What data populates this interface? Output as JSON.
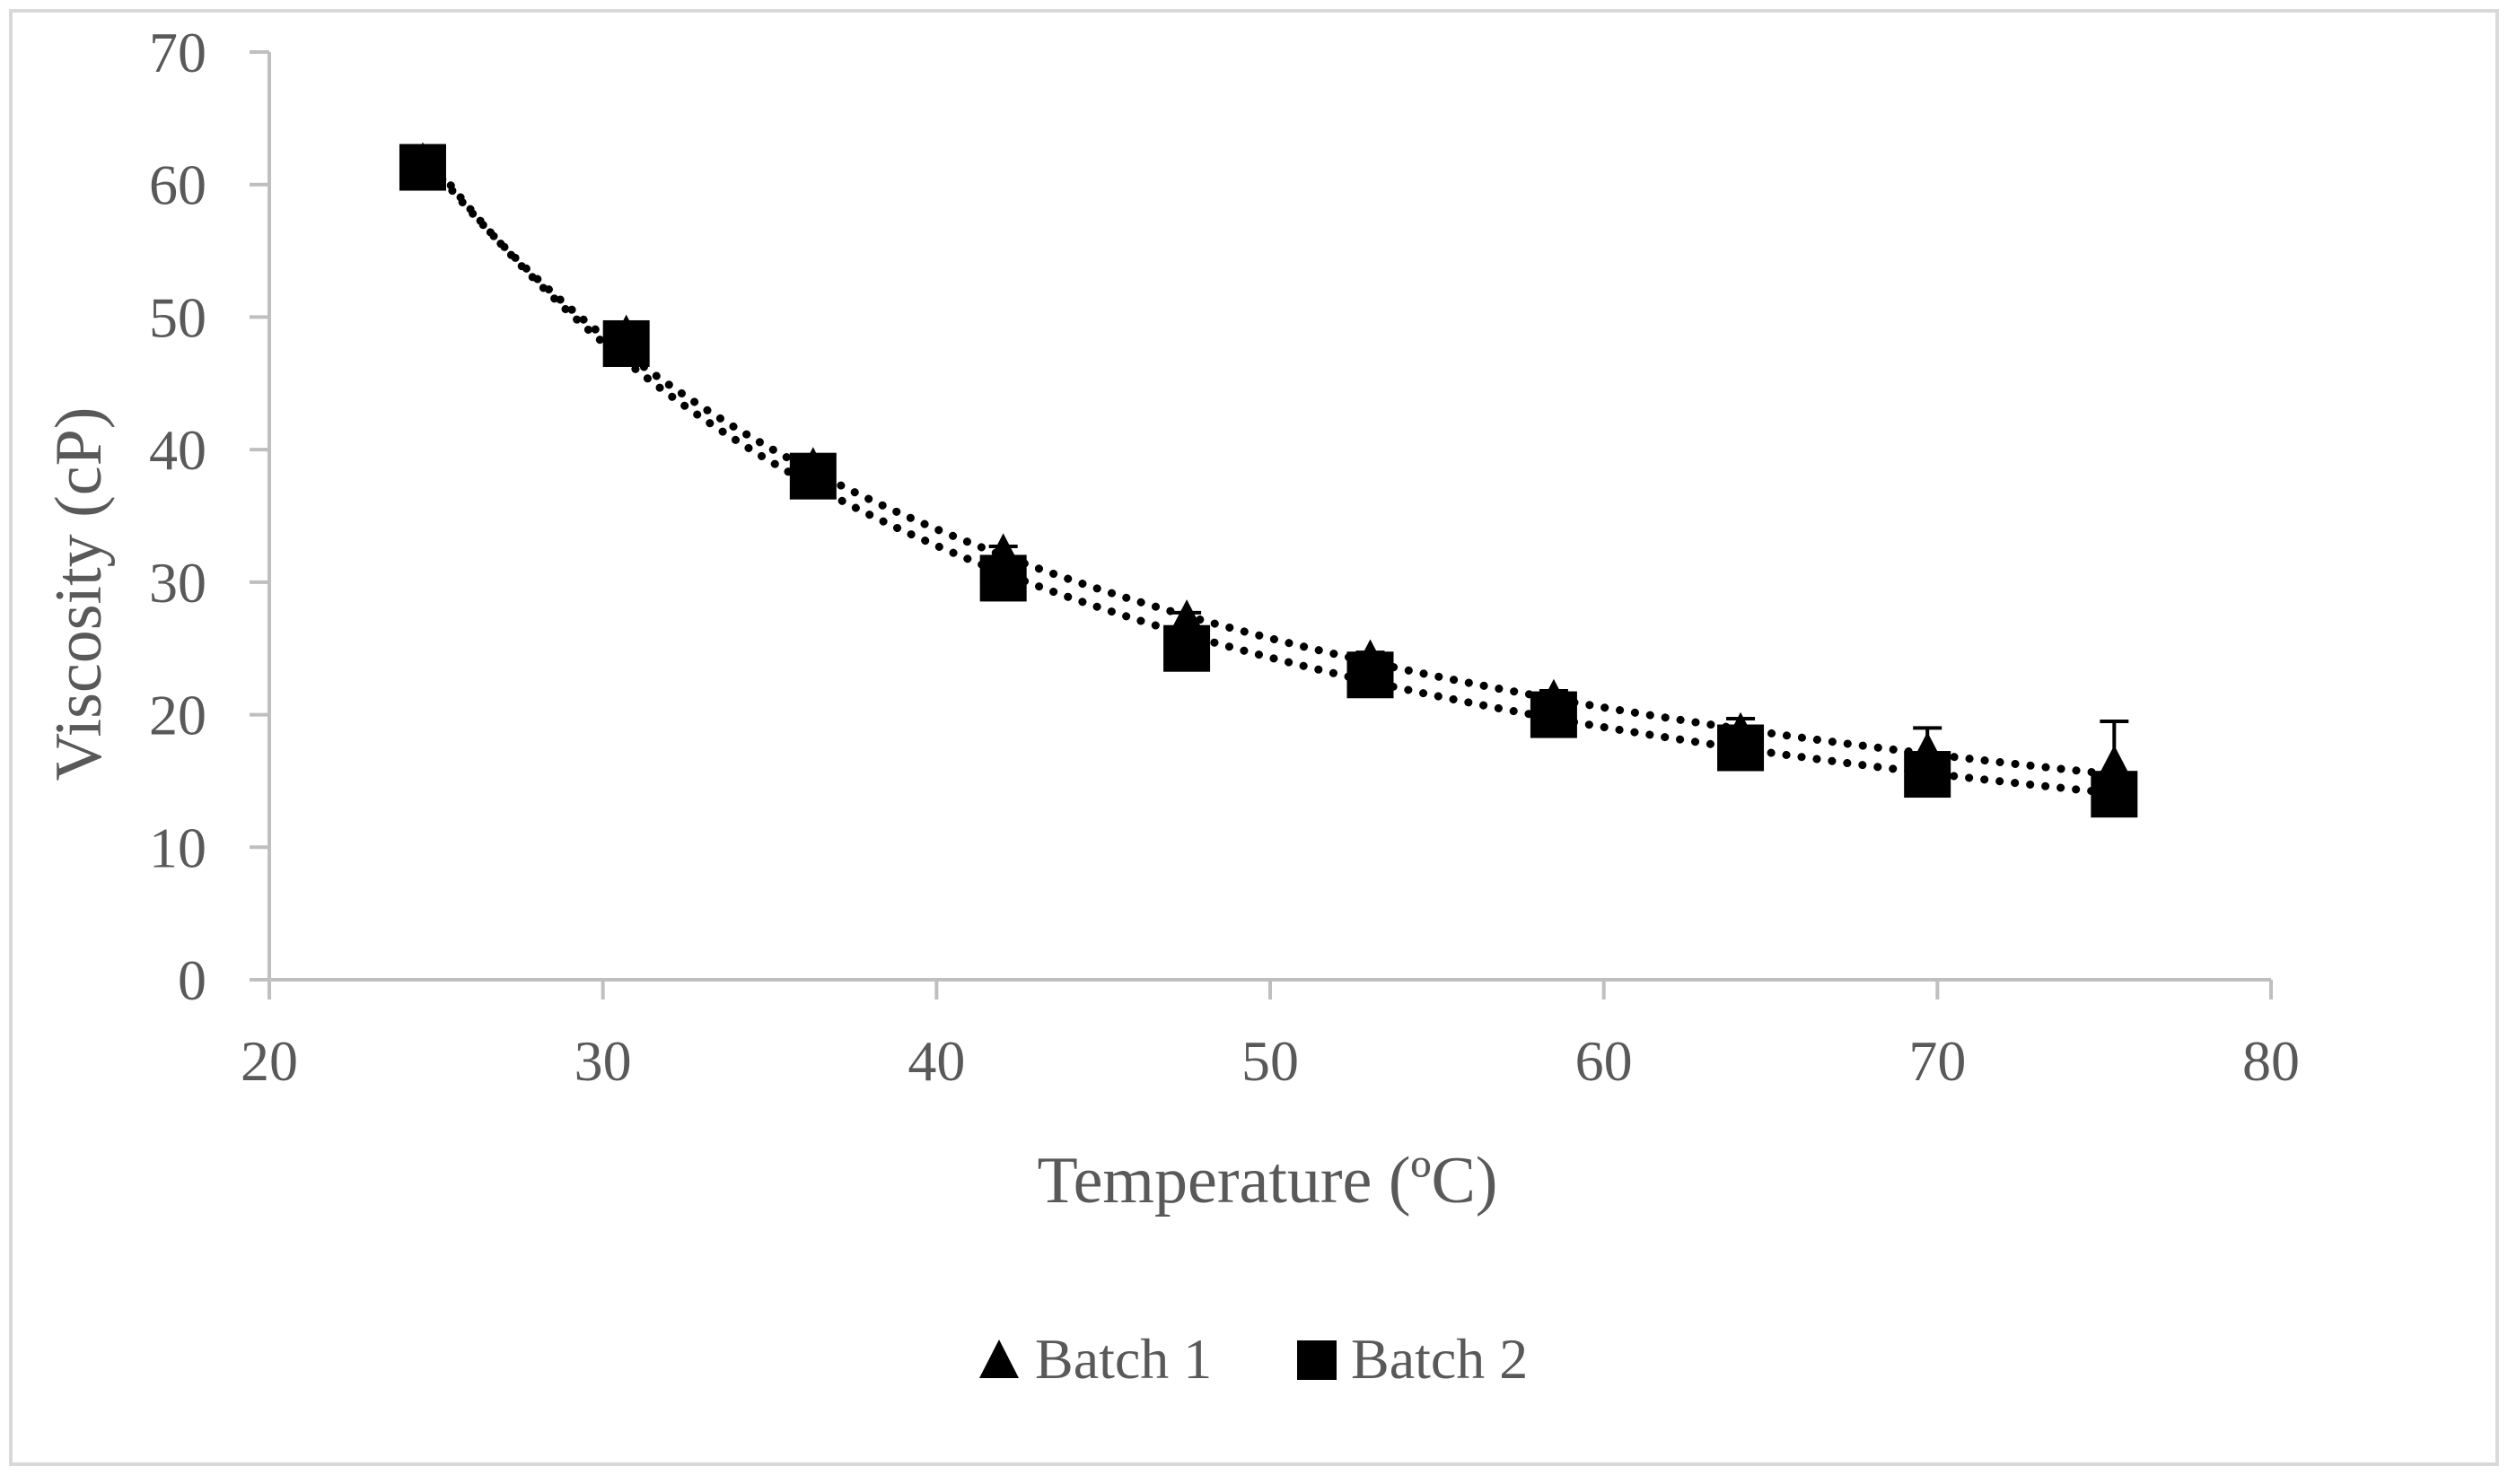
{
  "chart_data": {
    "type": "scatter",
    "title": "",
    "xlabel": "Temperature (ºC)",
    "ylabel": "Viscosity (cP)",
    "xlim": [
      20,
      80
    ],
    "ylim": [
      0,
      70
    ],
    "xticks": [
      20,
      30,
      40,
      50,
      60,
      70,
      80
    ],
    "yticks": [
      0,
      10,
      20,
      30,
      40,
      50,
      60,
      70
    ],
    "grid": false,
    "legend_position": "bottom-center",
    "trendline": "dotted",
    "series": [
      {
        "name": "Batch 1",
        "marker": "triangle",
        "x": [
          24.6,
          30.7,
          36.3,
          42.0,
          47.5,
          53.0,
          58.5,
          64.1,
          69.7,
          75.3
        ],
        "y": [
          61.5,
          48.5,
          38.5,
          32.0,
          27.0,
          24.0,
          21.0,
          18.5,
          17.0,
          16.0
        ],
        "error": [
          0.5,
          0.5,
          0.5,
          0.7,
          0.7,
          0.7,
          0.8,
          1.2,
          2.0,
          3.5
        ]
      },
      {
        "name": "Batch 2",
        "marker": "square",
        "x": [
          24.6,
          30.7,
          36.3,
          42.0,
          47.5,
          53.0,
          58.5,
          64.1,
          69.7,
          75.3
        ],
        "y": [
          61.3,
          48.0,
          38.0,
          30.3,
          25.0,
          23.0,
          20.0,
          17.5,
          15.5,
          14.0
        ],
        "error": [
          0.5,
          0.5,
          0.5,
          0.5,
          0.5,
          0.5,
          0.5,
          0.5,
          0.5,
          0.5
        ]
      }
    ]
  },
  "colors": {
    "marker": "#000000",
    "axis": "#bfbfbf",
    "text": "#595959",
    "border": "#d9d9d9"
  }
}
